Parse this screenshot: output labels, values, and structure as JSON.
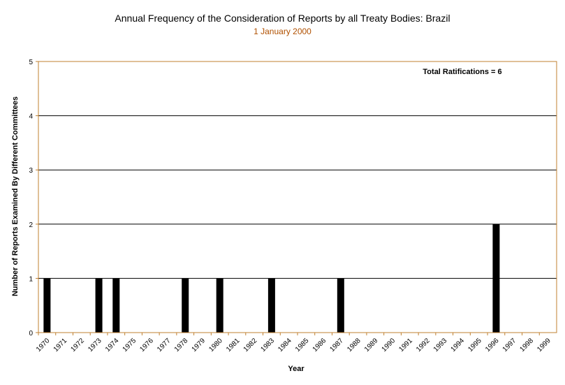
{
  "chart_data": {
    "type": "bar",
    "title": "Annual Frequency of the Consideration of Reports by all Treaty Bodies: Brazil",
    "subtitle": "1 January 2000",
    "xlabel": "Year",
    "ylabel": "Number of Reports Examined By Different Committees",
    "annotation": "Total Ratifications = 6",
    "ylim": [
      0,
      5
    ],
    "yticks": [
      "0",
      "1",
      "2",
      "3",
      "4",
      "5"
    ],
    "categories": [
      "1970",
      "1971",
      "1972",
      "1973",
      "1974",
      "1975",
      "1976",
      "1977",
      "1978",
      "1979",
      "1980",
      "1981",
      "1982",
      "1983",
      "1984",
      "1985",
      "1986",
      "1987",
      "1988",
      "1989",
      "1990",
      "1991",
      "1992",
      "1993",
      "1994",
      "1995",
      "1996",
      "1997",
      "1998",
      "1999"
    ],
    "values": [
      1,
      0,
      0,
      1,
      1,
      0,
      0,
      0,
      1,
      0,
      1,
      0,
      0,
      1,
      0,
      0,
      0,
      1,
      0,
      0,
      0,
      0,
      0,
      0,
      0,
      0,
      2,
      0,
      0,
      0
    ],
    "grid": true,
    "colors": {
      "bar": "#000000",
      "axis": "#c08030",
      "grid": "#000000"
    }
  }
}
